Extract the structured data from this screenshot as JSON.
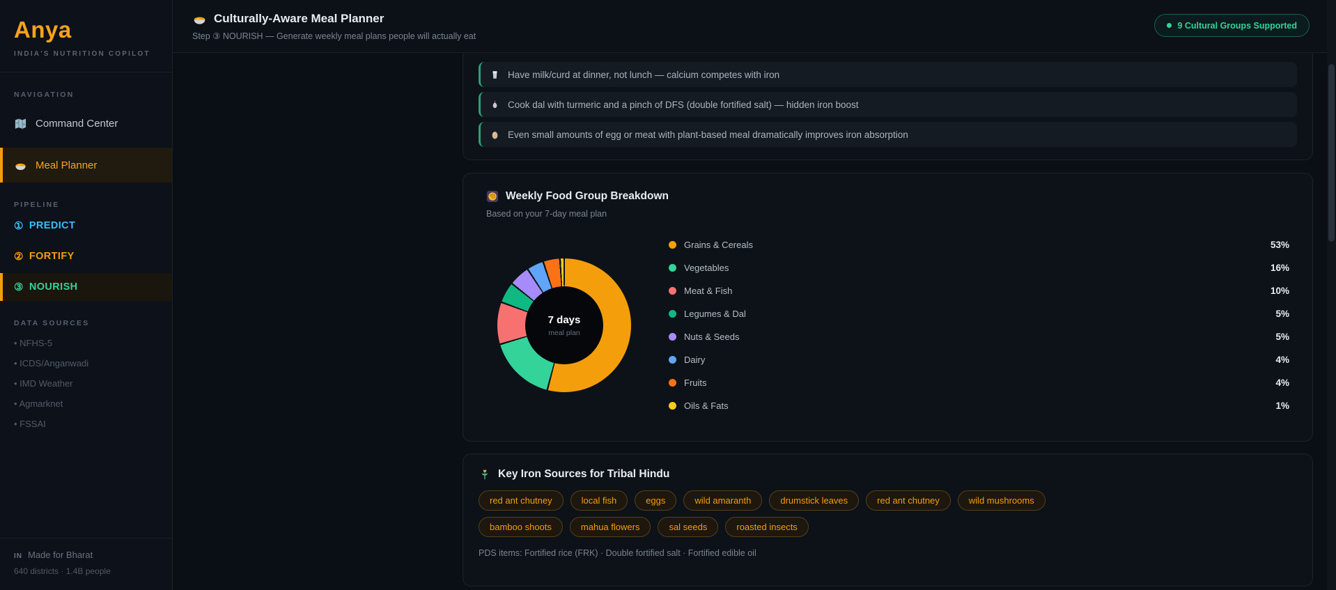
{
  "colors": {
    "accent": "#f59e0b",
    "success": "#34d399",
    "info": "#38bdf8",
    "tip_border": "#2f9e77"
  },
  "sidebar": {
    "logo": "Anya",
    "tagline": "INDIA'S NUTRITION COPILOT",
    "nav_label": "NAVIGATION",
    "nav": [
      {
        "icon": "world-map",
        "label": "Command Center",
        "active": false
      },
      {
        "icon": "curry-bowl",
        "label": "Meal Planner",
        "active": true
      }
    ],
    "pipeline_label": "PIPELINE",
    "pipeline": [
      {
        "num": "①",
        "label": "PREDICT",
        "color": "#38bdf8",
        "active": false
      },
      {
        "num": "②",
        "label": "FORTIFY",
        "color": "#f59e0b",
        "active": false
      },
      {
        "num": "③",
        "label": "NOURISH",
        "color": "#34d399",
        "active": true
      }
    ],
    "data_sources_label": "DATA SOURCES",
    "data_sources": [
      "NFHS-5",
      "ICDS/Anganwadi",
      "IMD Weather",
      "Agmarknet",
      "FSSAI"
    ],
    "footer": {
      "flag": "IN",
      "line1": "Made for Bharat",
      "line2": "640 districts · 1.4B people"
    }
  },
  "header": {
    "title": "Culturally-Aware Meal Planner",
    "subtitle": "Step ③ NOURISH — Generate weekly meal plans people will actually eat",
    "badge": "9 Cultural Groups Supported"
  },
  "tips": {
    "items": [
      {
        "icon": "milk-glass",
        "text": "Have milk/curd at dinner, not lunch — calcium competes with iron"
      },
      {
        "icon": "garlic",
        "text": "Cook dal with turmeric and a pinch of DFS (double fortified salt) — hidden iron boost"
      },
      {
        "icon": "egg",
        "text": "Even small amounts of egg or meat with plant-based meal dramatically improves iron absorption"
      }
    ]
  },
  "breakdown": {
    "title": "Weekly Food Group Breakdown",
    "subtitle": "Based on your 7-day meal plan",
    "center_title": "7 days",
    "center_sub": "meal plan"
  },
  "chart_data": {
    "type": "pie",
    "title": "Weekly Food Group Breakdown",
    "subtitle": "Based on your 7-day meal plan",
    "categories": [
      "Grains & Cereals",
      "Vegetables",
      "Meat & Fish",
      "Legumes & Dal",
      "Nuts & Seeds",
      "Dairy",
      "Fruits",
      "Oils & Fats"
    ],
    "values": [
      53,
      16,
      10,
      5,
      5,
      4,
      4,
      1
    ],
    "unit": "%",
    "colors": [
      "#f59e0b",
      "#34d399",
      "#f87171",
      "#10b981",
      "#a78bfa",
      "#60a5fa",
      "#f97316",
      "#facc15"
    ],
    "donut": true,
    "center_label": "7 days meal plan",
    "legend_position": "right"
  },
  "iron_sources": {
    "title": "Key Iron Sources for Tribal Hindu",
    "tags": [
      "red ant chutney",
      "local fish",
      "eggs",
      "wild amaranth",
      "drumstick leaves",
      "red ant chutney",
      "wild mushrooms",
      "bamboo shoots",
      "mahua flowers",
      "sal seeds",
      "roasted insects"
    ],
    "pds_note": "PDS items: Fortified rice (FRK) · Double fortified salt · Fortified edible oil"
  }
}
